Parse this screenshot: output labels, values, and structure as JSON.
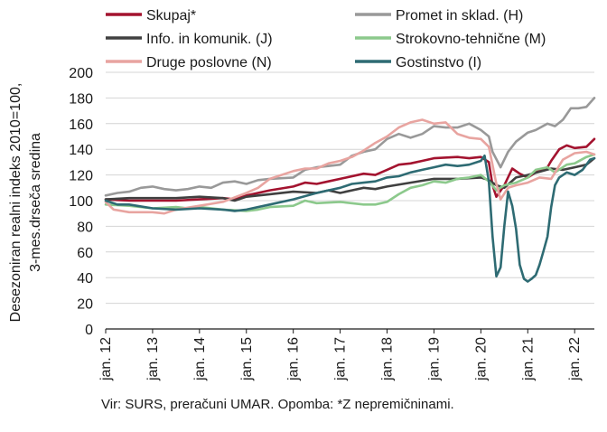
{
  "chart_data": {
    "type": "line",
    "ylabel_line1": "Desezoniran realni indeks 2010=100,",
    "ylabel_line2": "3-mes.drseča sredina",
    "ylim": [
      0,
      200
    ],
    "yticks": [
      0,
      20,
      40,
      60,
      80,
      100,
      120,
      140,
      160,
      180,
      200
    ],
    "xlim": [
      2012.0,
      2022.42
    ],
    "xticks": [
      {
        "label": "jan. 12",
        "x": 2012
      },
      {
        "label": "jan. 13",
        "x": 2013
      },
      {
        "label": "jan. 14",
        "x": 2014
      },
      {
        "label": "jan. 15",
        "x": 2015
      },
      {
        "label": "jan. 16",
        "x": 2016
      },
      {
        "label": "jan. 17",
        "x": 2017
      },
      {
        "label": "jan. 18",
        "x": 2018
      },
      {
        "label": "jan. 19",
        "x": 2019
      },
      {
        "label": "jan. 20",
        "x": 2020
      },
      {
        "label": "jan. 21",
        "x": 2021
      },
      {
        "label": "jan. 22",
        "x": 2022
      }
    ],
    "grid": "horizontal",
    "legend_position": "top",
    "source_note": "Vir: SURS, preračuni UMAR. Opomba: *Z nepremičninami.",
    "series": [
      {
        "name": "Skupaj*",
        "color": "#a3132f",
        "points": [
          [
            2012.0,
            101
          ],
          [
            2012.5,
            100
          ],
          [
            2013.0,
            100
          ],
          [
            2013.5,
            100
          ],
          [
            2014.0,
            101
          ],
          [
            2014.5,
            102
          ],
          [
            2014.75,
            101
          ],
          [
            2015.0,
            104
          ],
          [
            2015.5,
            108
          ],
          [
            2016.0,
            111
          ],
          [
            2016.25,
            114
          ],
          [
            2016.5,
            113
          ],
          [
            2016.75,
            115
          ],
          [
            2017.0,
            117
          ],
          [
            2017.5,
            121
          ],
          [
            2017.75,
            120
          ],
          [
            2018.0,
            124
          ],
          [
            2018.25,
            128
          ],
          [
            2018.5,
            129
          ],
          [
            2018.75,
            131
          ],
          [
            2019.0,
            133
          ],
          [
            2019.5,
            134
          ],
          [
            2019.75,
            133
          ],
          [
            2020.0,
            134
          ],
          [
            2020.17,
            130
          ],
          [
            2020.25,
            112
          ],
          [
            2020.33,
            103
          ],
          [
            2020.5,
            112
          ],
          [
            2020.67,
            125
          ],
          [
            2020.83,
            121
          ],
          [
            2021.0,
            118
          ],
          [
            2021.17,
            122
          ],
          [
            2021.42,
            126
          ],
          [
            2021.5,
            131
          ],
          [
            2021.67,
            140
          ],
          [
            2021.83,
            143
          ],
          [
            2022.0,
            141
          ],
          [
            2022.25,
            142
          ],
          [
            2022.42,
            148
          ]
        ]
      },
      {
        "name": "Promet in sklad. (H)",
        "color": "#999999",
        "points": [
          [
            2012.0,
            104
          ],
          [
            2012.25,
            106
          ],
          [
            2012.5,
            107
          ],
          [
            2012.75,
            110
          ],
          [
            2013.0,
            111
          ],
          [
            2013.25,
            109
          ],
          [
            2013.5,
            108
          ],
          [
            2013.75,
            109
          ],
          [
            2014.0,
            111
          ],
          [
            2014.25,
            110
          ],
          [
            2014.5,
            114
          ],
          [
            2014.75,
            115
          ],
          [
            2015.0,
            113
          ],
          [
            2015.25,
            116
          ],
          [
            2015.5,
            117
          ],
          [
            2016.0,
            118
          ],
          [
            2016.25,
            124
          ],
          [
            2016.5,
            126
          ],
          [
            2016.75,
            127
          ],
          [
            2017.0,
            128
          ],
          [
            2017.25,
            135
          ],
          [
            2017.5,
            138
          ],
          [
            2017.75,
            140
          ],
          [
            2018.0,
            148
          ],
          [
            2018.25,
            152
          ],
          [
            2018.5,
            149
          ],
          [
            2018.75,
            152
          ],
          [
            2019.0,
            158
          ],
          [
            2019.25,
            157
          ],
          [
            2019.5,
            157
          ],
          [
            2019.75,
            160
          ],
          [
            2020.0,
            155
          ],
          [
            2020.17,
            150
          ],
          [
            2020.25,
            138
          ],
          [
            2020.42,
            126
          ],
          [
            2020.58,
            138
          ],
          [
            2020.75,
            146
          ],
          [
            2021.0,
            153
          ],
          [
            2021.17,
            155
          ],
          [
            2021.42,
            160
          ],
          [
            2021.58,
            158
          ],
          [
            2021.75,
            163
          ],
          [
            2021.92,
            172
          ],
          [
            2022.08,
            172
          ],
          [
            2022.25,
            173
          ],
          [
            2022.42,
            180
          ]
        ]
      },
      {
        "name": "Info. in komunik. (J)",
        "color": "#404040",
        "points": [
          [
            2012.0,
            101
          ],
          [
            2012.5,
            102
          ],
          [
            2013.0,
            102
          ],
          [
            2013.5,
            102
          ],
          [
            2014.0,
            103
          ],
          [
            2014.5,
            102
          ],
          [
            2014.75,
            100
          ],
          [
            2015.0,
            103
          ],
          [
            2015.5,
            105
          ],
          [
            2016.0,
            107
          ],
          [
            2016.5,
            106
          ],
          [
            2016.75,
            108
          ],
          [
            2017.0,
            106
          ],
          [
            2017.25,
            108
          ],
          [
            2017.5,
            110
          ],
          [
            2017.75,
            109
          ],
          [
            2018.0,
            111
          ],
          [
            2018.5,
            114
          ],
          [
            2019.0,
            117
          ],
          [
            2019.5,
            117
          ],
          [
            2020.0,
            118
          ],
          [
            2020.17,
            116
          ],
          [
            2020.33,
            112
          ],
          [
            2020.5,
            110
          ],
          [
            2020.75,
            118
          ],
          [
            2021.0,
            120
          ],
          [
            2021.5,
            125
          ],
          [
            2021.75,
            124
          ],
          [
            2022.0,
            126
          ],
          [
            2022.25,
            128
          ],
          [
            2022.42,
            133
          ]
        ]
      },
      {
        "name": "Strokovno-tehnične (M)",
        "color": "#8cc98c",
        "points": [
          [
            2012.0,
            97
          ],
          [
            2012.5,
            96
          ],
          [
            2013.0,
            94
          ],
          [
            2013.5,
            95
          ],
          [
            2013.75,
            94
          ],
          [
            2014.0,
            95
          ],
          [
            2014.5,
            93
          ],
          [
            2015.0,
            92
          ],
          [
            2015.25,
            93
          ],
          [
            2015.5,
            95
          ],
          [
            2016.0,
            96
          ],
          [
            2016.25,
            100
          ],
          [
            2016.5,
            98
          ],
          [
            2017.0,
            99
          ],
          [
            2017.5,
            97
          ],
          [
            2017.75,
            97
          ],
          [
            2018.0,
            99
          ],
          [
            2018.25,
            105
          ],
          [
            2018.5,
            110
          ],
          [
            2018.75,
            112
          ],
          [
            2019.0,
            115
          ],
          [
            2019.25,
            114
          ],
          [
            2019.5,
            117
          ],
          [
            2019.75,
            118
          ],
          [
            2020.0,
            120
          ],
          [
            2020.17,
            115
          ],
          [
            2020.33,
            108
          ],
          [
            2020.5,
            112
          ],
          [
            2020.75,
            114
          ],
          [
            2021.0,
            118
          ],
          [
            2021.17,
            124
          ],
          [
            2021.42,
            126
          ],
          [
            2021.58,
            122
          ],
          [
            2021.83,
            128
          ],
          [
            2022.0,
            129
          ],
          [
            2022.25,
            134
          ],
          [
            2022.42,
            136
          ]
        ]
      },
      {
        "name": "Druge poslovne (N)",
        "color": "#e8a4a0",
        "points": [
          [
            2012.0,
            99
          ],
          [
            2012.17,
            93
          ],
          [
            2012.5,
            91
          ],
          [
            2013.0,
            91
          ],
          [
            2013.25,
            90
          ],
          [
            2013.5,
            93
          ],
          [
            2014.0,
            96
          ],
          [
            2014.5,
            99
          ],
          [
            2015.0,
            106
          ],
          [
            2015.25,
            110
          ],
          [
            2015.5,
            117
          ],
          [
            2016.0,
            123
          ],
          [
            2016.25,
            125
          ],
          [
            2016.5,
            125
          ],
          [
            2016.75,
            129
          ],
          [
            2017.0,
            131
          ],
          [
            2017.25,
            134
          ],
          [
            2017.5,
            139
          ],
          [
            2017.75,
            145
          ],
          [
            2018.0,
            150
          ],
          [
            2018.25,
            157
          ],
          [
            2018.5,
            161
          ],
          [
            2018.75,
            163
          ],
          [
            2019.0,
            160
          ],
          [
            2019.25,
            161
          ],
          [
            2019.5,
            152
          ],
          [
            2019.75,
            149
          ],
          [
            2020.0,
            148
          ],
          [
            2020.17,
            142
          ],
          [
            2020.33,
            113
          ],
          [
            2020.42,
            101
          ],
          [
            2020.58,
            110
          ],
          [
            2020.75,
            112
          ],
          [
            2021.0,
            114
          ],
          [
            2021.25,
            118
          ],
          [
            2021.5,
            117
          ],
          [
            2021.75,
            132
          ],
          [
            2022.0,
            137
          ],
          [
            2022.25,
            138
          ],
          [
            2022.42,
            136
          ]
        ]
      },
      {
        "name": "Gostinstvo (I)",
        "color": "#2e6b73",
        "points": [
          [
            2012.0,
            100
          ],
          [
            2012.25,
            97
          ],
          [
            2012.5,
            97
          ],
          [
            2013.0,
            94
          ],
          [
            2013.5,
            93
          ],
          [
            2014.0,
            94
          ],
          [
            2014.5,
            93
          ],
          [
            2014.75,
            92
          ],
          [
            2015.0,
            93
          ],
          [
            2015.5,
            97
          ],
          [
            2016.0,
            101
          ],
          [
            2016.5,
            106
          ],
          [
            2016.75,
            108
          ],
          [
            2017.0,
            110
          ],
          [
            2017.25,
            113
          ],
          [
            2017.5,
            114
          ],
          [
            2017.75,
            115
          ],
          [
            2018.0,
            118
          ],
          [
            2018.25,
            119
          ],
          [
            2018.5,
            122
          ],
          [
            2018.75,
            124
          ],
          [
            2019.0,
            126
          ],
          [
            2019.25,
            128
          ],
          [
            2019.5,
            127
          ],
          [
            2019.75,
            128
          ],
          [
            2020.0,
            131
          ],
          [
            2020.08,
            135
          ],
          [
            2020.17,
            115
          ],
          [
            2020.25,
            72
          ],
          [
            2020.33,
            41
          ],
          [
            2020.42,
            48
          ],
          [
            2020.5,
            80
          ],
          [
            2020.58,
            107
          ],
          [
            2020.67,
            96
          ],
          [
            2020.75,
            78
          ],
          [
            2020.83,
            50
          ],
          [
            2020.92,
            39
          ],
          [
            2021.0,
            37
          ],
          [
            2021.08,
            39
          ],
          [
            2021.17,
            42
          ],
          [
            2021.25,
            50
          ],
          [
            2021.33,
            60
          ],
          [
            2021.42,
            72
          ],
          [
            2021.5,
            95
          ],
          [
            2021.58,
            112
          ],
          [
            2021.67,
            118
          ],
          [
            2021.83,
            122
          ],
          [
            2022.0,
            120
          ],
          [
            2022.17,
            124
          ],
          [
            2022.33,
            132
          ],
          [
            2022.42,
            133
          ]
        ]
      }
    ]
  }
}
